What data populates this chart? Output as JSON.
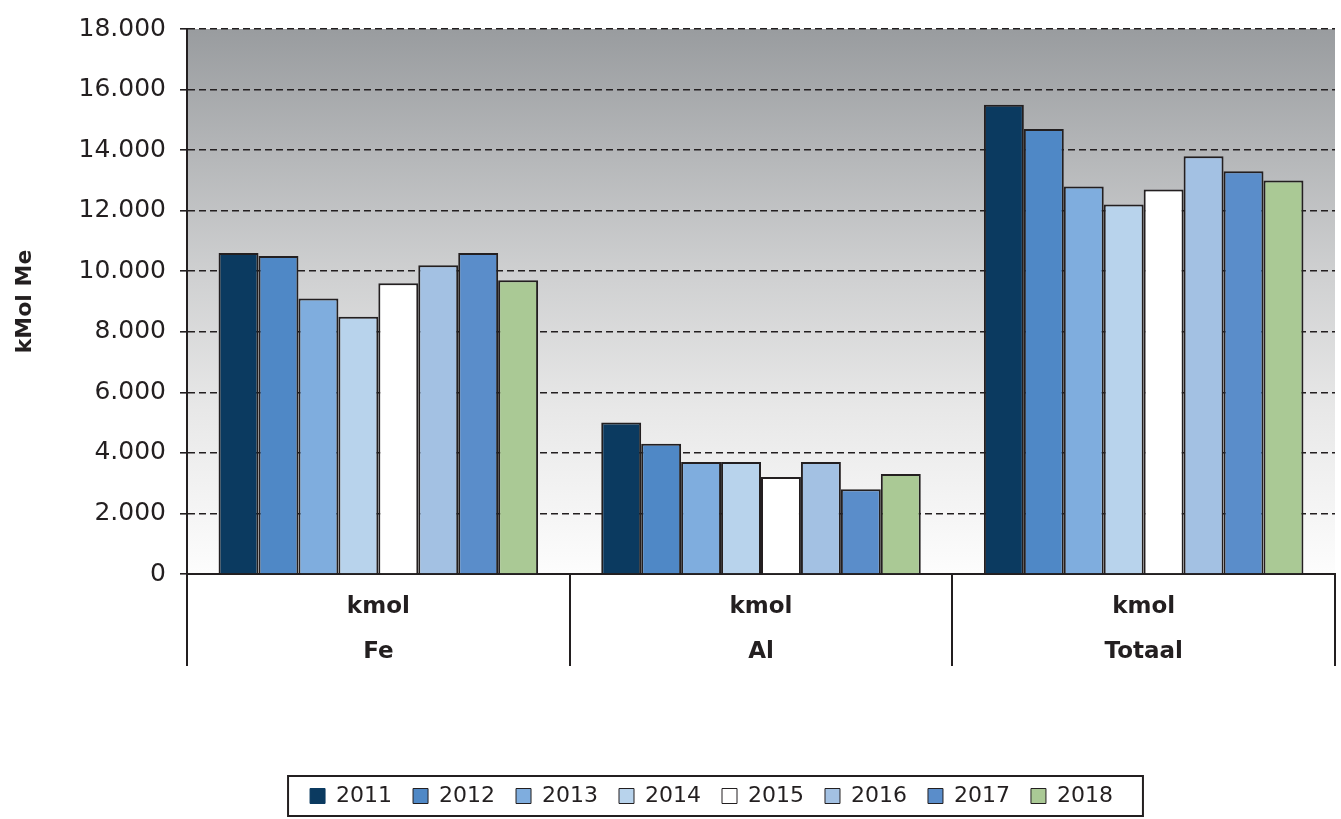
{
  "chart_data": {
    "type": "bar",
    "ylabel": "kMol Me",
    "categories": [
      "kmol\nFe",
      "kmol\nAl",
      "kmol\nTotaal"
    ],
    "series": [
      {
        "name": "2011",
        "color": "#0b3a60",
        "values": [
          10600,
          5000,
          15500
        ]
      },
      {
        "name": "2012",
        "color": "#4f88c6",
        "values": [
          10500,
          4300,
          14700
        ]
      },
      {
        "name": "2013",
        "color": "#7fadde",
        "values": [
          9100,
          3700,
          12800
        ]
      },
      {
        "name": "2014",
        "color": "#b8d3ec",
        "values": [
          8500,
          3700,
          12200
        ]
      },
      {
        "name": "2015",
        "color": "#ffffff",
        "values": [
          9600,
          3200,
          12700
        ]
      },
      {
        "name": "2016",
        "color": "#a3c1e3",
        "values": [
          10200,
          3700,
          13800
        ]
      },
      {
        "name": "2017",
        "color": "#5a8dca",
        "values": [
          10600,
          2800,
          13300
        ]
      },
      {
        "name": "2018",
        "color": "#aac995",
        "values": [
          9700,
          3300,
          13000
        ]
      }
    ],
    "ylim": [
      0,
      18000
    ],
    "yticks": [
      0,
      {
        "value": 2000,
        "label": "2.000"
      },
      {
        "value": 4000,
        "label": "4.000"
      },
      {
        "value": 6000,
        "label": "6.000"
      },
      {
        "value": 8000,
        "label": "8.000"
      },
      {
        "value": 10000,
        "label": "10.000"
      },
      {
        "value": 12000,
        "label": "12.000"
      },
      {
        "value": 14000,
        "label": "14.000"
      },
      {
        "value": 16000,
        "label": "16.000"
      },
      {
        "value": 18000,
        "label": "18.000"
      }
    ],
    "grid": "y",
    "legend": "bottom"
  }
}
